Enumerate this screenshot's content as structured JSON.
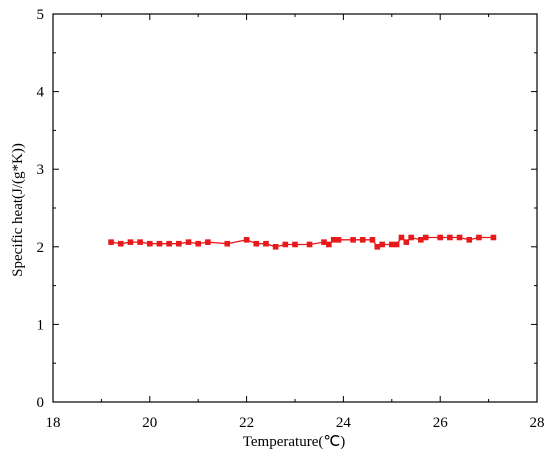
{
  "chart_data": {
    "type": "line",
    "title": "",
    "xlabel": "Temperature(℃)",
    "ylabel": "Specific heat(J/(g*K))",
    "xlim": [
      18,
      28
    ],
    "ylim": [
      0,
      5
    ],
    "x_ticks": [
      "18",
      "20",
      "22",
      "24",
      "26",
      "28"
    ],
    "y_ticks": [
      "0",
      "1",
      "2",
      "3",
      "4",
      "5"
    ],
    "grid": false,
    "legend": "none",
    "series": [
      {
        "color": "#e8191b",
        "marker": "square",
        "points": [
          {
            "x": 19.2,
            "y": 2.06
          },
          {
            "x": 19.4,
            "y": 2.04
          },
          {
            "x": 19.6,
            "y": 2.06
          },
          {
            "x": 19.8,
            "y": 2.06
          },
          {
            "x": 20.0,
            "y": 2.04
          },
          {
            "x": 20.2,
            "y": 2.04
          },
          {
            "x": 20.4,
            "y": 2.04
          },
          {
            "x": 20.6,
            "y": 2.04
          },
          {
            "x": 20.8,
            "y": 2.06
          },
          {
            "x": 21.0,
            "y": 2.04
          },
          {
            "x": 21.2,
            "y": 2.06
          },
          {
            "x": 21.6,
            "y": 2.04
          },
          {
            "x": 22.0,
            "y": 2.09
          },
          {
            "x": 22.2,
            "y": 2.04
          },
          {
            "x": 22.4,
            "y": 2.04
          },
          {
            "x": 22.6,
            "y": 2.0
          },
          {
            "x": 22.8,
            "y": 2.03
          },
          {
            "x": 23.0,
            "y": 2.03
          },
          {
            "x": 23.3,
            "y": 2.03
          },
          {
            "x": 23.6,
            "y": 2.06
          },
          {
            "x": 23.7,
            "y": 2.03
          },
          {
            "x": 23.8,
            "y": 2.09
          },
          {
            "x": 23.9,
            "y": 2.09
          },
          {
            "x": 24.2,
            "y": 2.09
          },
          {
            "x": 24.4,
            "y": 2.09
          },
          {
            "x": 24.6,
            "y": 2.09
          },
          {
            "x": 24.7,
            "y": 2.0
          },
          {
            "x": 24.8,
            "y": 2.03
          },
          {
            "x": 25.0,
            "y": 2.03
          },
          {
            "x": 25.1,
            "y": 2.03
          },
          {
            "x": 25.2,
            "y": 2.12
          },
          {
            "x": 25.3,
            "y": 2.06
          },
          {
            "x": 25.4,
            "y": 2.12
          },
          {
            "x": 25.6,
            "y": 2.09
          },
          {
            "x": 25.7,
            "y": 2.12
          },
          {
            "x": 26.0,
            "y": 2.12
          },
          {
            "x": 26.2,
            "y": 2.12
          },
          {
            "x": 26.4,
            "y": 2.12
          },
          {
            "x": 26.6,
            "y": 2.09
          },
          {
            "x": 26.8,
            "y": 2.12
          },
          {
            "x": 27.1,
            "y": 2.12
          }
        ]
      }
    ]
  }
}
